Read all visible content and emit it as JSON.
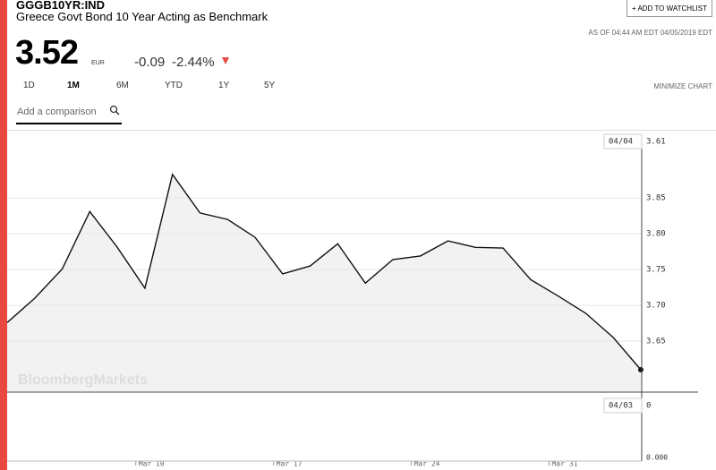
{
  "header": {
    "ticker": "GGGB10YR:IND",
    "name": "Greece Govt Bond 10 Year Acting as Benchmark",
    "watchlist_button": "+ ADD TO WATCHLIST",
    "as_of": "AS OF 04:44 AM EDT 04/05/2019 EDT",
    "price": "3.52",
    "currency": "EUR",
    "change": "-0.09",
    "change_percent": "-2.44%"
  },
  "tabs": [
    "1D",
    "1M",
    "6M",
    "YTD",
    "1Y",
    "5Y"
  ],
  "minimize": "MINIMIZE CHART",
  "comparison_placeholder": "Add a comparison",
  "chart_data": {
    "type": "line",
    "watermark": "BloombergMarkets",
    "categories": [
      null,
      null,
      null,
      null,
      null,
      null,
      null,
      null,
      null,
      null,
      null,
      null,
      null,
      null,
      null,
      null,
      null,
      null,
      null,
      null,
      null,
      null,
      null,
      null
    ],
    "series": [
      {
        "name": "GGGB10YR:IND",
        "color": "#111111",
        "fill": "#f2f2f2",
        "values": [
          3.676,
          3.71,
          3.751,
          3.831,
          3.781,
          3.724,
          3.883,
          3.829,
          3.82,
          3.795,
          3.744,
          3.755,
          3.786,
          3.731,
          3.764,
          3.769,
          3.79,
          3.781,
          3.78,
          3.736,
          3.713,
          3.689,
          3.655,
          3.61
        ]
      }
    ],
    "xlim": [
      0,
      23
    ],
    "xticks": [
      {
        "value": 4.67,
        "label": "Mar 10"
      },
      {
        "value": 9.67,
        "label": "Mar 17"
      },
      {
        "value": 14.67,
        "label": "Mar 24"
      },
      {
        "value": 19.67,
        "label": "Mar 31"
      }
    ],
    "ylim": [
      3.58,
      3.939
    ],
    "yticks": [
      3.65,
      {
        "value": 3.7,
        "label": "3.70"
      },
      3.75,
      {
        "value": 3.8,
        "label": "3.80"
      },
      3.85
    ],
    "grid": true,
    "crosshair": {
      "date": "04/04",
      "value": "3.61"
    },
    "volume_panel": {
      "date": "04/03",
      "value": "0",
      "axis_label": "0.000"
    }
  }
}
